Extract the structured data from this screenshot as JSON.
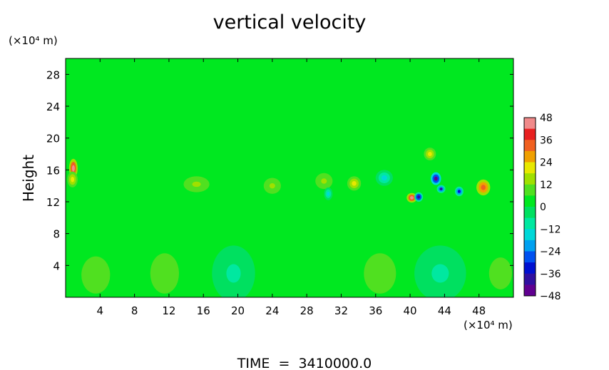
{
  "chart_data": {
    "type": "heatmap",
    "title": "vertical velocity",
    "ylabel": "Height",
    "y_unit_label": "(×10⁴ m)",
    "x_unit_label": "(×10⁴ m)",
    "xlim": [
      0,
      52
    ],
    "ylim": [
      0,
      30
    ],
    "x_ticks": [
      "4",
      "8",
      "12",
      "16",
      "20",
      "24",
      "28",
      "32",
      "36",
      "40",
      "44",
      "48"
    ],
    "x_tick_values": [
      4,
      8,
      12,
      16,
      20,
      24,
      28,
      32,
      36,
      40,
      44,
      48
    ],
    "y_ticks": [
      "4",
      "8",
      "12",
      "16",
      "20",
      "24",
      "28"
    ],
    "y_tick_values": [
      4,
      8,
      12,
      16,
      20,
      24,
      28
    ],
    "colorbar": {
      "ticks": [
        "48",
        "36",
        "24",
        "12",
        "0",
        "−12",
        "−24",
        "−36",
        "−48"
      ],
      "tick_values": [
        48,
        36,
        24,
        12,
        0,
        -12,
        -24,
        -36,
        -48
      ],
      "range": [
        -48,
        48
      ],
      "colors": [
        "#f08a8a",
        "#e82020",
        "#f06020",
        "#f0a000",
        "#e8e800",
        "#a0e000",
        "#50e020",
        "#00e820",
        "#00e060",
        "#00e8a0",
        "#00d8d8",
        "#00a0f0",
        "#0050f0",
        "#0010d0",
        "#3010a0",
        "#600090"
      ]
    },
    "background_value": 3,
    "features": [
      {
        "x": 0.9,
        "y": 16.2,
        "value": 44,
        "rx": 0.5,
        "ry": 1.2
      },
      {
        "x": 0.8,
        "y": 14.8,
        "value": 20,
        "rx": 0.6,
        "ry": 1.0
      },
      {
        "x": 15.2,
        "y": 14.2,
        "value": 14,
        "rx": 1.5,
        "ry": 1.0
      },
      {
        "x": 24.0,
        "y": 14.0,
        "value": 16,
        "rx": 1.0,
        "ry": 1.0
      },
      {
        "x": 30.0,
        "y": 14.6,
        "value": 16,
        "rx": 1.0,
        "ry": 1.0
      },
      {
        "x": 33.5,
        "y": 14.3,
        "value": 20,
        "rx": 0.8,
        "ry": 0.9
      },
      {
        "x": 40.2,
        "y": 12.5,
        "value": 44,
        "rx": 0.6,
        "ry": 0.6
      },
      {
        "x": 41.0,
        "y": 12.6,
        "value": -40,
        "rx": 0.5,
        "ry": 0.6
      },
      {
        "x": 42.3,
        "y": 18.0,
        "value": 22,
        "rx": 0.7,
        "ry": 0.8
      },
      {
        "x": 43.0,
        "y": 14.9,
        "value": -44,
        "rx": 0.6,
        "ry": 0.8
      },
      {
        "x": 43.6,
        "y": 13.6,
        "value": -36,
        "rx": 0.5,
        "ry": 0.5
      },
      {
        "x": 45.7,
        "y": 13.3,
        "value": -32,
        "rx": 0.5,
        "ry": 0.6
      },
      {
        "x": 48.5,
        "y": 13.8,
        "value": 36,
        "rx": 0.8,
        "ry": 1.0
      },
      {
        "x": 37.0,
        "y": 15.0,
        "value": -12,
        "rx": 1.0,
        "ry": 1.0
      },
      {
        "x": 30.5,
        "y": 13.0,
        "value": -14,
        "rx": 0.5,
        "ry": 0.8
      },
      {
        "x": 3.5,
        "y": 2.8,
        "value": 8,
        "rx": 2.5,
        "ry": 3.5
      },
      {
        "x": 11.5,
        "y": 3.0,
        "value": 10,
        "rx": 2.5,
        "ry": 3.8
      },
      {
        "x": 19.5,
        "y": 3.0,
        "value": -6,
        "rx": 2.5,
        "ry": 3.5
      },
      {
        "x": 36.5,
        "y": 3.0,
        "value": 12,
        "rx": 2.8,
        "ry": 3.8
      },
      {
        "x": 43.5,
        "y": 3.0,
        "value": -8,
        "rx": 3.0,
        "ry": 3.5
      },
      {
        "x": 50.5,
        "y": 3.0,
        "value": 8,
        "rx": 2.0,
        "ry": 3.0
      }
    ],
    "footer": "TIME  =  3410000.0"
  }
}
